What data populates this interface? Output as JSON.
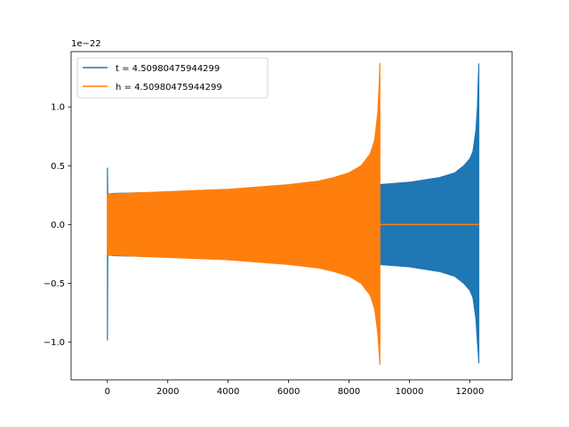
{
  "chart_data": {
    "type": "line",
    "title": "",
    "xlabel": "",
    "ylabel": "",
    "offset_label": "1e−22",
    "xlim": [
      -1200,
      13400
    ],
    "ylim": [
      -1.32,
      1.47
    ],
    "xticks": [
      0,
      2000,
      4000,
      6000,
      8000,
      10000,
      12000
    ],
    "yticks": [
      -1.0,
      -0.5,
      0.0,
      0.5,
      1.0
    ],
    "ytick_labels": [
      "−1.0",
      "−0.5",
      "0.0",
      "0.5",
      "1.0"
    ],
    "grid": false,
    "legend_position": "top-left",
    "series": [
      {
        "name": "t = 4.50980475944299",
        "color": "#1f77b4",
        "envelope": {
          "x": [
            0,
            5,
            15,
            40,
            60,
            200,
            1000,
            3000,
            5000,
            7000,
            9000,
            10000,
            11000,
            11500,
            11800,
            12000,
            12100,
            12200,
            12250,
            12280,
            12300
          ],
          "upper": [
            0.48,
            0.48,
            0.27,
            0.26,
            0.26,
            0.265,
            0.27,
            0.28,
            0.3,
            0.32,
            0.34,
            0.36,
            0.4,
            0.44,
            0.5,
            0.56,
            0.62,
            0.8,
            1.0,
            1.25,
            1.37
          ],
          "lower": [
            -0.98,
            -0.98,
            -0.27,
            -0.26,
            -0.26,
            -0.265,
            -0.27,
            -0.28,
            -0.3,
            -0.32,
            -0.34,
            -0.36,
            -0.4,
            -0.44,
            -0.5,
            -0.56,
            -0.62,
            -0.8,
            -1.0,
            -1.1,
            -1.18
          ]
        }
      },
      {
        "name": "h = 4.50980475944299",
        "color": "#ff7f0e",
        "envelope": {
          "x": [
            0,
            10,
            60,
            1000,
            2000,
            3000,
            4000,
            5000,
            6000,
            7000,
            7500,
            8000,
            8400,
            8700,
            8850,
            8950,
            9000,
            9020,
            9025
          ],
          "upper": [
            0.26,
            0.26,
            0.26,
            0.27,
            0.28,
            0.29,
            0.3,
            0.32,
            0.34,
            0.37,
            0.4,
            0.44,
            0.5,
            0.6,
            0.72,
            0.95,
            1.2,
            1.37,
            1.37
          ],
          "lower": [
            -0.26,
            -0.26,
            -0.26,
            -0.27,
            -0.28,
            -0.29,
            -0.3,
            -0.32,
            -0.34,
            -0.37,
            -0.4,
            -0.44,
            -0.5,
            -0.6,
            -0.72,
            -0.92,
            -1.1,
            -1.19,
            -1.19
          ]
        },
        "flat_segment": {
          "x": [
            9025,
            12300
          ],
          "y": 0.0
        }
      }
    ]
  }
}
